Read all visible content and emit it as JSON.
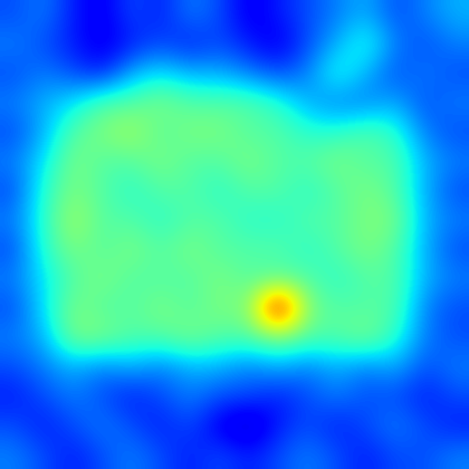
{
  "chart_data": {
    "type": "heatmap",
    "tick_labels": false,
    "color_range": [
      0,
      1
    ],
    "cells": [
      [
        0.2,
        0.25,
        0.15,
        0.1,
        0.2,
        0.15,
        0.25,
        0.2,
        0.1,
        0.15,
        0.2,
        0.25,
        0.3,
        0.2,
        0.25,
        0.3
      ],
      [
        0.25,
        0.2,
        0.15,
        0.1,
        0.15,
        0.2,
        0.15,
        0.2,
        0.15,
        0.1,
        0.2,
        0.3,
        0.4,
        0.25,
        0.2,
        0.25
      ],
      [
        0.2,
        0.25,
        0.2,
        0.15,
        0.3,
        0.35,
        0.3,
        0.3,
        0.25,
        0.2,
        0.25,
        0.4,
        0.3,
        0.2,
        0.25,
        0.2
      ],
      [
        0.25,
        0.3,
        0.35,
        0.45,
        0.45,
        0.5,
        0.45,
        0.45,
        0.45,
        0.4,
        0.3,
        0.25,
        0.25,
        0.3,
        0.2,
        0.25
      ],
      [
        0.2,
        0.3,
        0.45,
        0.5,
        0.55,
        0.45,
        0.5,
        0.5,
        0.45,
        0.45,
        0.4,
        0.4,
        0.45,
        0.4,
        0.25,
        0.2
      ],
      [
        0.25,
        0.35,
        0.5,
        0.45,
        0.45,
        0.5,
        0.45,
        0.45,
        0.5,
        0.45,
        0.45,
        0.5,
        0.45,
        0.45,
        0.3,
        0.25
      ],
      [
        0.2,
        0.4,
        0.5,
        0.45,
        0.4,
        0.45,
        0.45,
        0.4,
        0.45,
        0.45,
        0.4,
        0.45,
        0.5,
        0.45,
        0.3,
        0.2
      ],
      [
        0.25,
        0.4,
        0.55,
        0.45,
        0.45,
        0.4,
        0.45,
        0.45,
        0.4,
        0.4,
        0.45,
        0.45,
        0.5,
        0.5,
        0.3,
        0.25
      ],
      [
        0.2,
        0.4,
        0.5,
        0.45,
        0.5,
        0.45,
        0.5,
        0.45,
        0.45,
        0.45,
        0.4,
        0.45,
        0.5,
        0.45,
        0.3,
        0.2
      ],
      [
        0.25,
        0.35,
        0.45,
        0.5,
        0.45,
        0.45,
        0.45,
        0.5,
        0.45,
        0.45,
        0.45,
        0.4,
        0.45,
        0.45,
        0.3,
        0.25
      ],
      [
        0.2,
        0.35,
        0.5,
        0.45,
        0.45,
        0.5,
        0.45,
        0.5,
        0.5,
        1.0,
        0.5,
        0.45,
        0.45,
        0.45,
        0.25,
        0.2
      ],
      [
        0.25,
        0.3,
        0.5,
        0.5,
        0.45,
        0.45,
        0.5,
        0.45,
        0.45,
        0.5,
        0.45,
        0.45,
        0.5,
        0.4,
        0.25,
        0.2
      ],
      [
        0.2,
        0.25,
        0.3,
        0.25,
        0.3,
        0.25,
        0.3,
        0.3,
        0.25,
        0.3,
        0.25,
        0.3,
        0.25,
        0.3,
        0.2,
        0.25
      ],
      [
        0.15,
        0.2,
        0.25,
        0.2,
        0.15,
        0.2,
        0.25,
        0.2,
        0.2,
        0.15,
        0.2,
        0.25,
        0.2,
        0.2,
        0.15,
        0.2
      ],
      [
        0.2,
        0.15,
        0.2,
        0.25,
        0.2,
        0.15,
        0.2,
        0.1,
        0.05,
        0.15,
        0.2,
        0.15,
        0.2,
        0.25,
        0.2,
        0.15
      ],
      [
        0.25,
        0.2,
        0.15,
        0.2,
        0.25,
        0.2,
        0.15,
        0.2,
        0.15,
        0.2,
        0.25,
        0.2,
        0.15,
        0.2,
        0.2,
        0.25
      ]
    ]
  }
}
